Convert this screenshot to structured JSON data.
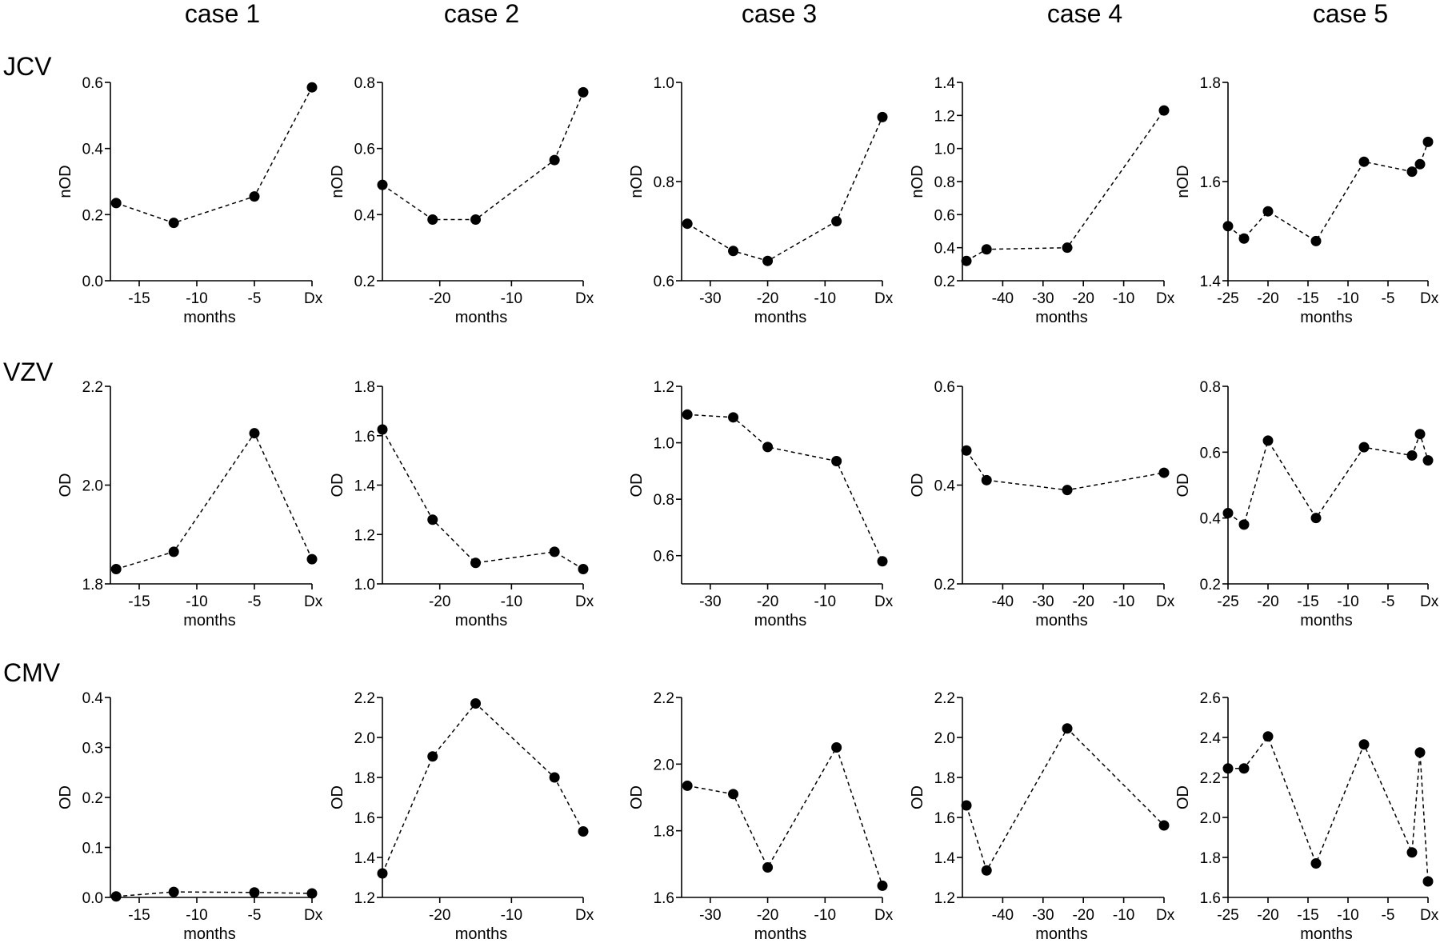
{
  "case_titles": [
    "case 1",
    "case 2",
    "case 3",
    "case 4",
    "case 5"
  ],
  "virus_labels": [
    "JCV",
    "VZV",
    "CMV"
  ],
  "chart_data": [
    {
      "type": "line",
      "row": 0,
      "col": 0,
      "ylabel": "nOD",
      "xlabel": "months",
      "xlim": [
        -17.5,
        0
      ],
      "xticks": [
        -15,
        -10,
        -5,
        0
      ],
      "xticklabels": [
        "-15",
        "-10",
        "-5",
        "Dx"
      ],
      "ylim": [
        0,
        0.6
      ],
      "yticks": [
        0,
        0.2,
        0.4,
        0.6
      ],
      "yticklabels": [
        "0.0",
        "0.2",
        "0.4",
        "0.6"
      ],
      "x": [
        -17,
        -12,
        -5,
        0
      ],
      "y": [
        0.235,
        0.175,
        0.255,
        0.585
      ]
    },
    {
      "type": "line",
      "row": 0,
      "col": 1,
      "ylabel": "nOD",
      "xlabel": "months",
      "xlim": [
        -28,
        0
      ],
      "xticks": [
        -20,
        -10,
        0
      ],
      "xticklabels": [
        "-20",
        "-10",
        "Dx"
      ],
      "ylim": [
        0.2,
        0.8
      ],
      "yticks": [
        0.2,
        0.4,
        0.6,
        0.8
      ],
      "yticklabels": [
        "0.2",
        "0.4",
        "0.6",
        "0.8"
      ],
      "x": [
        -28,
        -21,
        -15,
        -4,
        0
      ],
      "y": [
        0.49,
        0.385,
        0.385,
        0.565,
        0.77
      ]
    },
    {
      "type": "line",
      "row": 0,
      "col": 2,
      "ylabel": "nOD",
      "xlabel": "months",
      "xlim": [
        -35,
        0
      ],
      "xticks": [
        -30,
        -20,
        -10,
        0
      ],
      "xticklabels": [
        "-30",
        "-20",
        "-10",
        "Dx"
      ],
      "ylim": [
        0.6,
        1.0
      ],
      "yticks": [
        0.6,
        0.8,
        1.0
      ],
      "yticklabels": [
        "0.6",
        "0.8",
        "1.0"
      ],
      "x": [
        -34,
        -26,
        -20,
        -8,
        0
      ],
      "y": [
        0.715,
        0.66,
        0.64,
        0.72,
        0.93
      ]
    },
    {
      "type": "line",
      "row": 0,
      "col": 3,
      "ylabel": "nOD",
      "xlabel": "months",
      "xlim": [
        -50,
        0
      ],
      "xticks": [
        -40,
        -30,
        -20,
        -10,
        0
      ],
      "xticklabels": [
        "-40",
        "-30",
        "-20",
        "-10",
        "Dx"
      ],
      "ylim": [
        0.2,
        1.4
      ],
      "yticks": [
        0.2,
        0.4,
        0.6,
        0.8,
        1.0,
        1.2,
        1.4
      ],
      "yticklabels": [
        "0.2",
        "0.4",
        "0.6",
        "0.8",
        "1.0",
        "1.2",
        "1.4"
      ],
      "x": [
        -49,
        -44,
        -24,
        0
      ],
      "y": [
        0.32,
        0.39,
        0.4,
        1.23
      ]
    },
    {
      "type": "line",
      "row": 0,
      "col": 4,
      "ylabel": "nOD",
      "xlabel": "months",
      "xlim": [
        -25,
        0
      ],
      "xticks": [
        -25,
        -20,
        -15,
        -10,
        -5,
        0
      ],
      "xticklabels": [
        "-25",
        "-20",
        "-15",
        "-10",
        "-5",
        "Dx"
      ],
      "ylim": [
        1.4,
        1.8
      ],
      "yticks": [
        1.4,
        1.6,
        1.8
      ],
      "yticklabels": [
        "1.4",
        "1.6",
        "1.8"
      ],
      "x": [
        -25,
        -23,
        -20,
        -14,
        -8,
        -2,
        -1,
        0
      ],
      "y": [
        1.51,
        1.485,
        1.54,
        1.48,
        1.64,
        1.62,
        1.635,
        1.68
      ]
    },
    {
      "type": "line",
      "row": 1,
      "col": 0,
      "ylabel": "OD",
      "xlabel": "months",
      "xlim": [
        -17.5,
        0
      ],
      "xticks": [
        -15,
        -10,
        -5,
        0
      ],
      "xticklabels": [
        "-15",
        "-10",
        "-5",
        "Dx"
      ],
      "ylim": [
        1.8,
        2.2
      ],
      "yticks": [
        1.8,
        2.0,
        2.2
      ],
      "yticklabels": [
        "1.8",
        "2.0",
        "2.2"
      ],
      "x": [
        -17,
        -12,
        -5,
        0
      ],
      "y": [
        1.83,
        1.865,
        2.105,
        1.85
      ]
    },
    {
      "type": "line",
      "row": 1,
      "col": 1,
      "ylabel": "OD",
      "xlabel": "months",
      "xlim": [
        -28,
        0
      ],
      "xticks": [
        -20,
        -10,
        0
      ],
      "xticklabels": [
        "-20",
        "-10",
        "Dx"
      ],
      "ylim": [
        1.0,
        1.8
      ],
      "yticks": [
        1.0,
        1.2,
        1.4,
        1.6,
        1.8
      ],
      "yticklabels": [
        "1.0",
        "1.2",
        "1.4",
        "1.6",
        "1.8"
      ],
      "x": [
        -28,
        -21,
        -15,
        -4,
        0
      ],
      "y": [
        1.625,
        1.26,
        1.085,
        1.13,
        1.06
      ]
    },
    {
      "type": "line",
      "row": 1,
      "col": 2,
      "ylabel": "OD",
      "xlabel": "months",
      "xlim": [
        -35,
        0
      ],
      "xticks": [
        -30,
        -20,
        -10,
        0
      ],
      "xticklabels": [
        "-30",
        "-20",
        "-10",
        "Dx"
      ],
      "ylim": [
        0.5,
        1.2
      ],
      "yticks": [
        0.6,
        0.8,
        1.0,
        1.2
      ],
      "yticklabels": [
        "0.6",
        "0.8",
        "1.0",
        "1.2"
      ],
      "x": [
        -34,
        -26,
        -20,
        -8,
        0
      ],
      "y": [
        1.1,
        1.09,
        0.985,
        0.935,
        0.58
      ]
    },
    {
      "type": "line",
      "row": 1,
      "col": 3,
      "ylabel": "OD",
      "xlabel": "months",
      "xlim": [
        -50,
        0
      ],
      "xticks": [
        -40,
        -30,
        -20,
        -10,
        0
      ],
      "xticklabels": [
        "-40",
        "-30",
        "-20",
        "-10",
        "Dx"
      ],
      "ylim": [
        0.2,
        0.6
      ],
      "yticks": [
        0.2,
        0.4,
        0.6
      ],
      "yticklabels": [
        "0.2",
        "0.4",
        "0.6"
      ],
      "x": [
        -49,
        -44,
        -24,
        0
      ],
      "y": [
        0.47,
        0.41,
        0.39,
        0.425
      ]
    },
    {
      "type": "line",
      "row": 1,
      "col": 4,
      "ylabel": "OD",
      "xlabel": "months",
      "xlim": [
        -25,
        0
      ],
      "xticks": [
        -25,
        -20,
        -15,
        -10,
        -5,
        0
      ],
      "xticklabels": [
        "-25",
        "-20",
        "-15",
        "-10",
        "-5",
        "Dx"
      ],
      "ylim": [
        0.2,
        0.8
      ],
      "yticks": [
        0.2,
        0.4,
        0.6,
        0.8
      ],
      "yticklabels": [
        "0.2",
        "0.4",
        "0.6",
        "0.8"
      ],
      "x": [
        -25,
        -23,
        -20,
        -14,
        -8,
        -2,
        -1,
        0
      ],
      "y": [
        0.415,
        0.38,
        0.635,
        0.4,
        0.615,
        0.59,
        0.655,
        0.575
      ]
    },
    {
      "type": "line",
      "row": 2,
      "col": 0,
      "ylabel": "OD",
      "xlabel": "months",
      "xlim": [
        -17.5,
        0
      ],
      "xticks": [
        -15,
        -10,
        -5,
        0
      ],
      "xticklabels": [
        "-15",
        "-10",
        "-5",
        "Dx"
      ],
      "ylim": [
        0,
        0.4
      ],
      "yticks": [
        0,
        0.1,
        0.2,
        0.3,
        0.4
      ],
      "yticklabels": [
        "0.0",
        "0.1",
        "0.2",
        "0.3",
        "0.4"
      ],
      "x": [
        -17,
        -12,
        -5,
        0
      ],
      "y": [
        0.002,
        0.011,
        0.01,
        0.008
      ]
    },
    {
      "type": "line",
      "row": 2,
      "col": 1,
      "ylabel": "OD",
      "xlabel": "months",
      "xlim": [
        -28,
        0
      ],
      "xticks": [
        -20,
        -10,
        0
      ],
      "xticklabels": [
        "-20",
        "-10",
        "Dx"
      ],
      "ylim": [
        1.2,
        2.2
      ],
      "yticks": [
        1.2,
        1.4,
        1.6,
        1.8,
        2.0,
        2.2
      ],
      "yticklabels": [
        "1.2",
        "1.4",
        "1.6",
        "1.8",
        "2.0",
        "2.2"
      ],
      "x": [
        -28,
        -21,
        -15,
        -4,
        0
      ],
      "y": [
        1.32,
        1.905,
        2.17,
        1.8,
        1.53
      ]
    },
    {
      "type": "line",
      "row": 2,
      "col": 2,
      "ylabel": "OD",
      "xlabel": "months",
      "xlim": [
        -35,
        0
      ],
      "xticks": [
        -30,
        -20,
        -10,
        0
      ],
      "xticklabels": [
        "-30",
        "-20",
        "-10",
        "Dx"
      ],
      "ylim": [
        1.6,
        2.2
      ],
      "yticks": [
        1.6,
        1.8,
        2.0,
        2.2
      ],
      "yticklabels": [
        "1.6",
        "1.8",
        "2.0",
        "2.2"
      ],
      "x": [
        -34,
        -26,
        -20,
        -8,
        0
      ],
      "y": [
        1.935,
        1.91,
        1.69,
        2.05,
        1.635
      ]
    },
    {
      "type": "line",
      "row": 2,
      "col": 3,
      "ylabel": "OD",
      "xlabel": "months",
      "xlim": [
        -50,
        0
      ],
      "xticks": [
        -40,
        -30,
        -20,
        -10,
        0
      ],
      "xticklabels": [
        "-40",
        "-30",
        "-20",
        "-10",
        "Dx"
      ],
      "ylim": [
        1.2,
        2.2
      ],
      "yticks": [
        1.2,
        1.4,
        1.6,
        1.8,
        2.0,
        2.2
      ],
      "yticklabels": [
        "1.2",
        "1.4",
        "1.6",
        "1.8",
        "2.0",
        "2.2"
      ],
      "x": [
        -49,
        -44,
        -24,
        0
      ],
      "y": [
        1.66,
        1.335,
        2.045,
        1.56
      ]
    },
    {
      "type": "line",
      "row": 2,
      "col": 4,
      "ylabel": "OD",
      "xlabel": "months",
      "xlim": [
        -25,
        0
      ],
      "xticks": [
        -25,
        -20,
        -15,
        -10,
        -5,
        0
      ],
      "xticklabels": [
        "-25",
        "-20",
        "-15",
        "-10",
        "-5",
        "Dx"
      ],
      "ylim": [
        1.6,
        2.6
      ],
      "yticks": [
        1.6,
        1.8,
        2.0,
        2.2,
        2.4,
        2.6
      ],
      "yticklabels": [
        "1.6",
        "1.8",
        "2.0",
        "2.2",
        "2.4",
        "2.6"
      ],
      "x": [
        -25,
        -23,
        -20,
        -14,
        -8,
        -2,
        -1,
        0
      ],
      "y": [
        2.245,
        2.245,
        2.405,
        1.77,
        2.365,
        1.825,
        2.325,
        1.68
      ]
    }
  ]
}
